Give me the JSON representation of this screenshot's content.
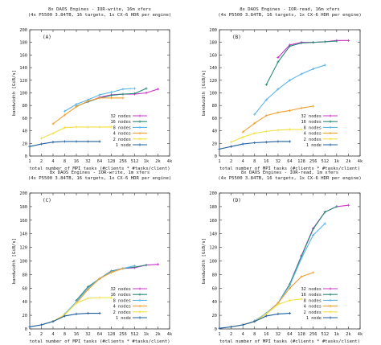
{
  "chart_data": [
    {
      "type": "line",
      "title": "8x DAOS Engines - IOR-write, 16m xfers",
      "subtitle": "(4x P5500 3.84TB, 16 targets, 1x CX-6 HDR per engine)",
      "panel_label": "(A)",
      "xlabel": "total number of MPI tasks (#clients * #tasks/client)",
      "ylabel": "bandwidth [GiB/s]",
      "x_ticks": [
        "1",
        "2",
        "4",
        "8",
        "16",
        "32",
        "64",
        "128",
        "256",
        "512",
        "1k",
        "2k",
        "4k"
      ],
      "y_ticks": [
        "0",
        "20",
        "40",
        "60",
        "80",
        "100",
        "120",
        "140",
        "160",
        "180",
        "200"
      ],
      "ylim": [
        0,
        200
      ],
      "legend_position": "bottom-right",
      "series": [
        {
          "name": "32 nodes",
          "color": "#cc33cc",
          "points": [
            [
              32,
              86
            ],
            [
              64,
              93
            ],
            [
              128,
              97
            ],
            [
              256,
              98
            ],
            [
              512,
              98
            ],
            [
              1024,
              100
            ],
            [
              2048,
              106
            ]
          ]
        },
        {
          "name": "16 nodes",
          "color": "#2a8a7a",
          "points": [
            [
              16,
              79
            ],
            [
              32,
              86
            ],
            [
              64,
              92
            ],
            [
              128,
              96
            ],
            [
              256,
              98
            ],
            [
              512,
              99
            ],
            [
              1024,
              107
            ]
          ]
        },
        {
          "name": "8 nodes",
          "color": "#5ab4e6",
          "points": [
            [
              8,
              71
            ],
            [
              16,
              82
            ],
            [
              32,
              89
            ],
            [
              64,
              97
            ],
            [
              128,
              101
            ],
            [
              256,
              106
            ],
            [
              512,
              107
            ]
          ]
        },
        {
          "name": "4 nodes",
          "color": "#f0a030",
          "points": [
            [
              4,
              51
            ],
            [
              8,
              65
            ],
            [
              16,
              78
            ],
            [
              32,
              87
            ],
            [
              64,
              92
            ],
            [
              128,
              92
            ],
            [
              256,
              92
            ]
          ]
        },
        {
          "name": "2 nodes",
          "color": "#f0e040",
          "points": [
            [
              2,
              28
            ],
            [
              4,
              36
            ],
            [
              8,
              45
            ],
            [
              16,
              46
            ],
            [
              32,
              46
            ],
            [
              64,
              46
            ],
            [
              128,
              46
            ]
          ]
        },
        {
          "name": "1 node",
          "color": "#1f5f9f",
          "points": [
            [
              1,
              15
            ],
            [
              2,
              19
            ],
            [
              4,
              22
            ],
            [
              8,
              23
            ],
            [
              16,
              23
            ],
            [
              32,
              23
            ],
            [
              64,
              23
            ]
          ]
        }
      ]
    },
    {
      "type": "line",
      "title": "8x DAOS Engines - IOR-read, 16m xfers",
      "subtitle": "(4x P5500 3.84TB, 16 targets, 1x CX-6 HDR per engine)",
      "panel_label": "(B)",
      "xlabel": "total number of MPI tasks (#clients * #tasks/client)",
      "ylabel": "bandwidth [GiB/s]",
      "x_ticks": [
        "1",
        "2",
        "4",
        "8",
        "16",
        "32",
        "64",
        "128",
        "256",
        "512",
        "1k",
        "2k",
        "4k"
      ],
      "y_ticks": [
        "0",
        "20",
        "40",
        "60",
        "80",
        "100",
        "120",
        "140",
        "160",
        "180",
        "200"
      ],
      "ylim": [
        0,
        200
      ],
      "legend_position": "bottom-right",
      "series": [
        {
          "name": "32 nodes",
          "color": "#cc33cc",
          "points": [
            [
              32,
              156
            ],
            [
              64,
              176
            ],
            [
              128,
              180
            ],
            [
              256,
              180
            ],
            [
              512,
              181
            ],
            [
              1024,
              183
            ],
            [
              2048,
              183
            ]
          ]
        },
        {
          "name": "16 nodes",
          "color": "#2a8a7a",
          "points": [
            [
              16,
              113
            ],
            [
              32,
              149
            ],
            [
              64,
              174
            ],
            [
              128,
              179
            ],
            [
              256,
              180
            ],
            [
              512,
              181
            ],
            [
              1024,
              182
            ]
          ]
        },
        {
          "name": "8 nodes",
          "color": "#5ab4e6",
          "points": [
            [
              8,
              66
            ],
            [
              16,
              89
            ],
            [
              32,
              106
            ],
            [
              64,
              120
            ],
            [
              128,
              130
            ],
            [
              256,
              138
            ],
            [
              512,
              144
            ]
          ]
        },
        {
          "name": "4 nodes",
          "color": "#f0a030",
          "points": [
            [
              4,
              38
            ],
            [
              8,
              52
            ],
            [
              16,
              64
            ],
            [
              32,
              69
            ],
            [
              64,
              72
            ],
            [
              128,
              76
            ],
            [
              256,
              79
            ]
          ]
        },
        {
          "name": "2 nodes",
          "color": "#f0e040",
          "points": [
            [
              2,
              22
            ],
            [
              4,
              30
            ],
            [
              8,
              36
            ],
            [
              16,
              39
            ],
            [
              32,
              41
            ],
            [
              64,
              42
            ],
            [
              128,
              42
            ]
          ]
        },
        {
          "name": "1 node",
          "color": "#1f5f9f",
          "points": [
            [
              1,
              11
            ],
            [
              2,
              15
            ],
            [
              4,
              19
            ],
            [
              8,
              21
            ],
            [
              16,
              22
            ],
            [
              32,
              23
            ],
            [
              64,
              23
            ]
          ]
        }
      ]
    },
    {
      "type": "line",
      "title": "8x DAOS Engines - IOR-write, 1m xfers",
      "subtitle": "(4x P5500 3.84TB, 16 targets, 1x CX-6 HDR per engine)",
      "panel_label": "(C)",
      "xlabel": "total number of MPI tasks (#clients * #tasks/client)",
      "ylabel": "bandwidth [GiB/s]",
      "x_ticks": [
        "1",
        "2",
        "4",
        "8",
        "16",
        "32",
        "64",
        "128",
        "256",
        "512",
        "1k",
        "2k",
        "4k"
      ],
      "y_ticks": [
        "0",
        "20",
        "40",
        "60",
        "80",
        "100",
        "120",
        "140",
        "160",
        "180",
        "200"
      ],
      "ylim": [
        0,
        200
      ],
      "legend_position": "bottom-right",
      "series": [
        {
          "name": "32 nodes",
          "color": "#cc33cc",
          "points": [
            [
              32,
              61
            ],
            [
              64,
              74
            ],
            [
              128,
              85
            ],
            [
              256,
              89
            ],
            [
              512,
              90
            ],
            [
              1024,
              94
            ],
            [
              2048,
              95
            ]
          ]
        },
        {
          "name": "16 nodes",
          "color": "#2a8a7a",
          "points": [
            [
              16,
              42
            ],
            [
              32,
              62
            ],
            [
              64,
              74
            ],
            [
              128,
              85
            ],
            [
              256,
              89
            ],
            [
              512,
              91
            ],
            [
              1024,
              94
            ]
          ]
        },
        {
          "name": "8 nodes",
          "color": "#5ab4e6",
          "points": [
            [
              8,
              22
            ],
            [
              16,
              40
            ],
            [
              32,
              60
            ],
            [
              64,
              74
            ],
            [
              128,
              84
            ],
            [
              256,
              89
            ],
            [
              512,
              93
            ]
          ]
        },
        {
          "name": "4 nodes",
          "color": "#f0a030",
          "points": [
            [
              4,
              11
            ],
            [
              8,
              21
            ],
            [
              16,
              38
            ],
            [
              32,
              58
            ],
            [
              64,
              74
            ],
            [
              128,
              83
            ],
            [
              256,
              89
            ]
          ]
        },
        {
          "name": "2 nodes",
          "color": "#f0e040",
          "points": [
            [
              2,
              6
            ],
            [
              4,
              11
            ],
            [
              8,
              21
            ],
            [
              16,
              38
            ],
            [
              32,
              45
            ],
            [
              64,
              46
            ],
            [
              128,
              46
            ]
          ]
        },
        {
          "name": "1 node",
          "color": "#1f5f9f",
          "points": [
            [
              1,
              3
            ],
            [
              2,
              6
            ],
            [
              4,
              11
            ],
            [
              8,
              19
            ],
            [
              16,
              22
            ],
            [
              32,
              23
            ],
            [
              64,
              23
            ]
          ]
        }
      ]
    },
    {
      "type": "line",
      "title": "8x DAOS Engines - IOR-read, 1m xfers",
      "subtitle": "(4x P5500 3.84TB, 16 targets, 1x CX-6 HDR per engine)",
      "panel_label": "(D)",
      "xlabel": "total number of MPI tasks (#clients * #tasks/client)",
      "ylabel": "bandwidth [GiB/s]",
      "x_ticks": [
        "1",
        "2",
        "4",
        "8",
        "16",
        "32",
        "64",
        "128",
        "256",
        "512",
        "1k",
        "2k",
        "4k"
      ],
      "y_ticks": [
        "0",
        "20",
        "40",
        "60",
        "80",
        "100",
        "120",
        "140",
        "160",
        "180",
        "200"
      ],
      "ylim": [
        0,
        200
      ],
      "legend_position": "bottom-right",
      "series": [
        {
          "name": "32 nodes",
          "color": "#cc33cc",
          "points": [
            [
              32,
              38
            ],
            [
              64,
              66
            ],
            [
              128,
              108
            ],
            [
              256,
              148
            ],
            [
              512,
              172
            ],
            [
              1024,
              180
            ],
            [
              2048,
              182
            ]
          ]
        },
        {
          "name": "16 nodes",
          "color": "#2a8a7a",
          "points": [
            [
              16,
              23
            ],
            [
              32,
              38
            ],
            [
              64,
              66
            ],
            [
              128,
              107
            ],
            [
              256,
              147
            ],
            [
              512,
              172
            ],
            [
              1024,
              180
            ]
          ]
        },
        {
          "name": "8 nodes",
          "color": "#5ab4e6",
          "points": [
            [
              8,
              12
            ],
            [
              16,
              23
            ],
            [
              32,
              38
            ],
            [
              64,
              64
            ],
            [
              128,
              104
            ],
            [
              256,
              138
            ],
            [
              512,
              155
            ]
          ]
        },
        {
          "name": "4 nodes",
          "color": "#f0a030",
          "points": [
            [
              4,
              6
            ],
            [
              8,
              11
            ],
            [
              16,
              22
            ],
            [
              32,
              38
            ],
            [
              64,
              60
            ],
            [
              128,
              77
            ],
            [
              256,
              83
            ]
          ]
        },
        {
          "name": "2 nodes",
          "color": "#f0e040",
          "points": [
            [
              2,
              3
            ],
            [
              4,
              6
            ],
            [
              8,
              11
            ],
            [
              16,
              22
            ],
            [
              32,
              36
            ],
            [
              64,
              42
            ],
            [
              128,
              44
            ]
          ]
        },
        {
          "name": "1 node",
          "color": "#1f5f9f",
          "points": [
            [
              1,
              1
            ],
            [
              2,
              3
            ],
            [
              4,
              6
            ],
            [
              8,
              11
            ],
            [
              16,
              19
            ],
            [
              32,
              22
            ],
            [
              64,
              23
            ]
          ]
        }
      ]
    }
  ]
}
